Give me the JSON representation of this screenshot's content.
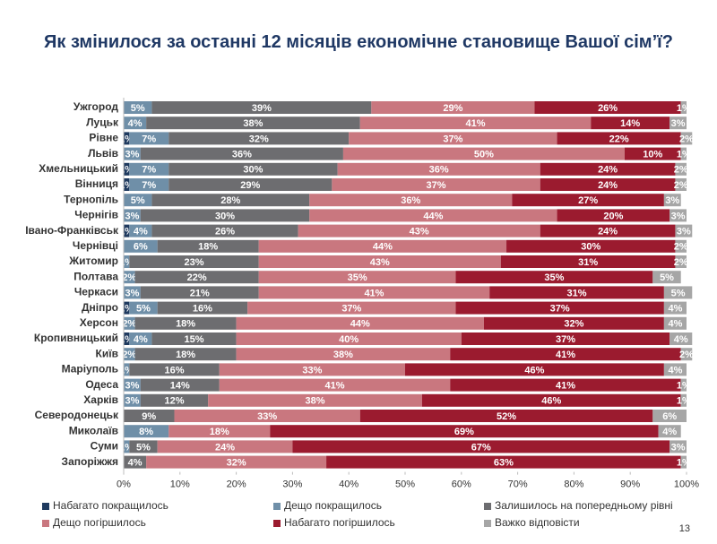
{
  "chart_data": {
    "type": "stacked-bar-horizontal",
    "title": "Як змінилося за останні 12 місяців економічне становище Вашої сім’ї?",
    "page_number": "13",
    "categories": [
      "Ужгород",
      "Луцьк",
      "Рівне",
      "Львів",
      "Хмельницький",
      "Вінниця",
      "Тернопіль",
      "Чернігів",
      "Івано-Франківськ",
      "Чернівці",
      "Житомир",
      "Полтава",
      "Черкаси",
      "Дніпро",
      "Херсон",
      "Кропивницький",
      "Київ",
      "Маріуполь",
      "Одеса",
      "Харків",
      "Северодонецьк",
      "Миколаїв",
      "Суми",
      "Запоріжжя"
    ],
    "series": [
      {
        "name": "Набагато покращилось",
        "color": "#1f3a5f",
        "values": [
          0,
          0,
          1,
          0,
          1,
          1,
          0,
          0,
          1,
          0,
          0,
          0,
          0,
          1,
          0,
          1,
          0,
          0,
          0,
          0,
          0,
          0,
          0,
          0
        ],
        "value_labels": [
          null,
          null,
          "1%",
          null,
          "1%",
          "1%",
          null,
          null,
          "1%",
          null,
          null,
          null,
          null,
          "1%",
          null,
          "1%",
          null,
          null,
          null,
          null,
          null,
          null,
          null,
          null
        ]
      },
      {
        "name": "Дещо покращилось",
        "color": "#6f8fa8",
        "values": [
          5,
          4,
          7,
          3,
          7,
          7,
          5,
          3,
          4,
          6,
          1,
          2,
          3,
          5,
          2,
          4,
          2,
          1,
          3,
          3,
          0,
          8,
          1,
          0
        ],
        "value_labels": [
          "5%",
          "4%",
          "7%",
          "3%",
          "7%",
          "7%",
          "5%",
          "3%",
          "4%",
          "6%",
          "1%",
          "2%",
          "3%",
          "5%",
          "2%",
          "4%",
          "2%",
          "1%",
          "3%",
          "3%",
          null,
          "8%",
          "1%",
          null
        ]
      },
      {
        "name": "Залишилось на попередньому рівні",
        "color": "#6d6d70",
        "values": [
          39,
          38,
          32,
          36,
          30,
          29,
          28,
          30,
          26,
          18,
          23,
          22,
          21,
          16,
          18,
          15,
          18,
          16,
          14,
          12,
          9,
          0,
          5,
          4
        ],
        "value_labels": [
          "39%",
          "38%",
          "32%",
          "36%",
          "30%",
          "29%",
          "28%",
          "30%",
          "26%",
          "18%",
          "23%",
          "22%",
          "21%",
          "16%",
          "18%",
          "15%",
          "18%",
          "16%",
          "14%",
          "12%",
          "9%",
          null,
          "5%",
          "4%"
        ]
      },
      {
        "name": "Дещо погіршилось",
        "color": "#c9777f",
        "values": [
          29,
          41,
          37,
          50,
          36,
          37,
          36,
          44,
          43,
          44,
          43,
          35,
          41,
          37,
          44,
          40,
          38,
          33,
          41,
          38,
          33,
          18,
          24,
          32
        ],
        "value_labels": [
          "29%",
          "41%",
          "37%",
          "50%",
          "36%",
          "37%",
          "36%",
          "44%",
          "43%",
          "44%",
          "43%",
          "35%",
          "41%",
          "37%",
          "44%",
          "40%",
          "38%",
          "33%",
          "41%",
          "38%",
          "33%",
          "18%",
          "24%",
          "32%"
        ]
      },
      {
        "name": "Набагато погіршилось",
        "color": "#9b1b2f",
        "values": [
          26,
          14,
          22,
          10,
          24,
          24,
          27,
          20,
          24,
          30,
          31,
          35,
          31,
          37,
          32,
          37,
          41,
          46,
          41,
          46,
          52,
          69,
          67,
          63
        ],
        "value_labels": [
          "26%",
          "14%",
          "22%",
          "10%",
          "24%",
          "24%",
          "27%",
          "20%",
          "24%",
          "30%",
          "31%",
          "35%",
          "31%",
          "37%",
          "32%",
          "37%",
          "41%",
          "46%",
          "41%",
          "46%",
          "52%",
          "69%",
          "67%",
          "63%"
        ]
      },
      {
        "name": "Важко відповісти",
        "color": "#a6a6a6",
        "values": [
          1,
          3,
          2,
          1,
          2,
          2,
          3,
          3,
          3,
          2,
          2,
          5,
          5,
          4,
          4,
          4,
          2,
          4,
          1,
          1,
          6,
          4,
          3,
          1
        ],
        "value_labels": [
          "1%",
          "3%",
          "2%",
          "1%",
          "2%",
          "2%",
          "3%",
          "3%",
          "3%",
          "2%",
          "2%",
          "5%",
          "5%",
          "4%",
          "4%",
          "4%",
          "2%",
          "4%",
          "1%",
          "1%",
          "6%",
          "4%",
          "3%",
          "1%"
        ]
      }
    ],
    "xlim": [
      0,
      100
    ],
    "xticks": [
      {
        "value": 0,
        "label": "0%"
      },
      {
        "value": 10,
        "label": "10%"
      },
      {
        "value": 20,
        "label": "20%"
      },
      {
        "value": 30,
        "label": "30%"
      },
      {
        "value": 40,
        "label": "40%"
      },
      {
        "value": 50,
        "label": "50%"
      },
      {
        "value": 60,
        "label": "60%"
      },
      {
        "value": 70,
        "label": "70%"
      },
      {
        "value": 80,
        "label": "80%"
      },
      {
        "value": 90,
        "label": "90%"
      },
      {
        "value": 100,
        "label": "100%"
      }
    ]
  }
}
